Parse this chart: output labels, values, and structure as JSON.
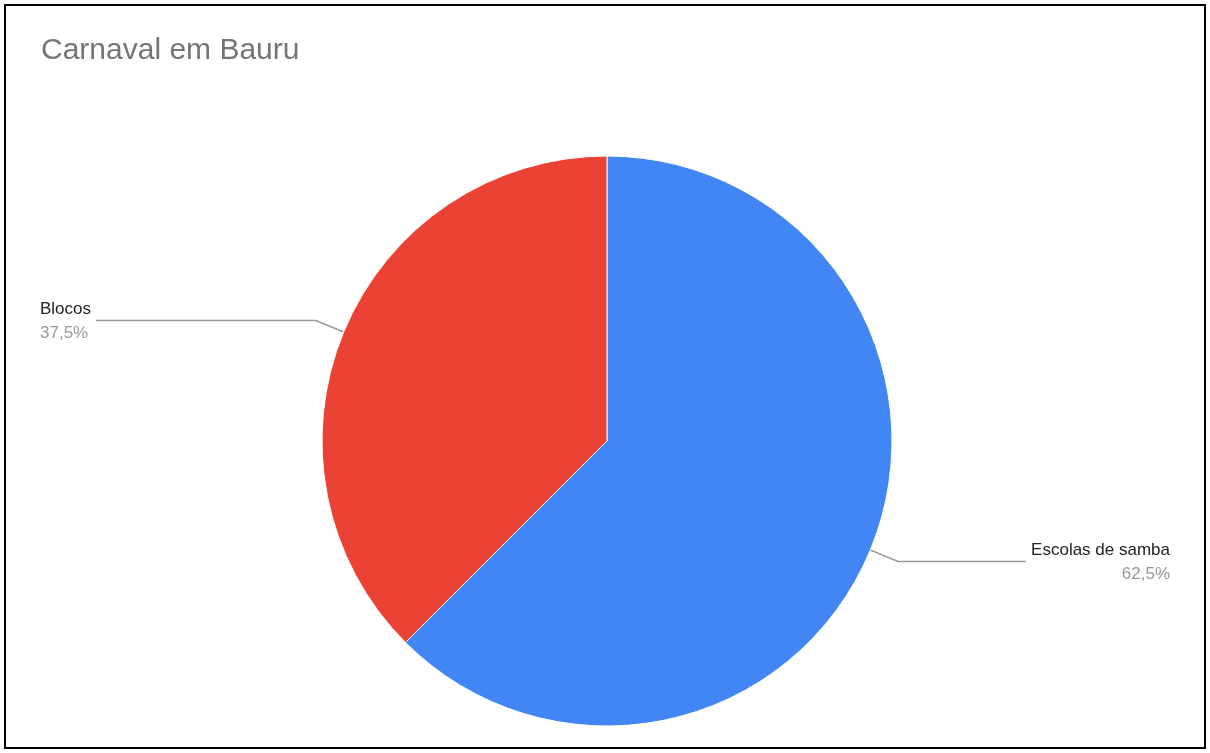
{
  "chart_data": {
    "type": "pie",
    "title": "Carnaval em Bauru",
    "categories": [
      "Escolas de samba",
      "Blocos"
    ],
    "values": [
      62.5,
      37.5
    ],
    "value_labels": [
      "62,5%",
      "37,5%"
    ],
    "colors": [
      "#4285f4",
      "#ea4335"
    ],
    "legend": false
  }
}
